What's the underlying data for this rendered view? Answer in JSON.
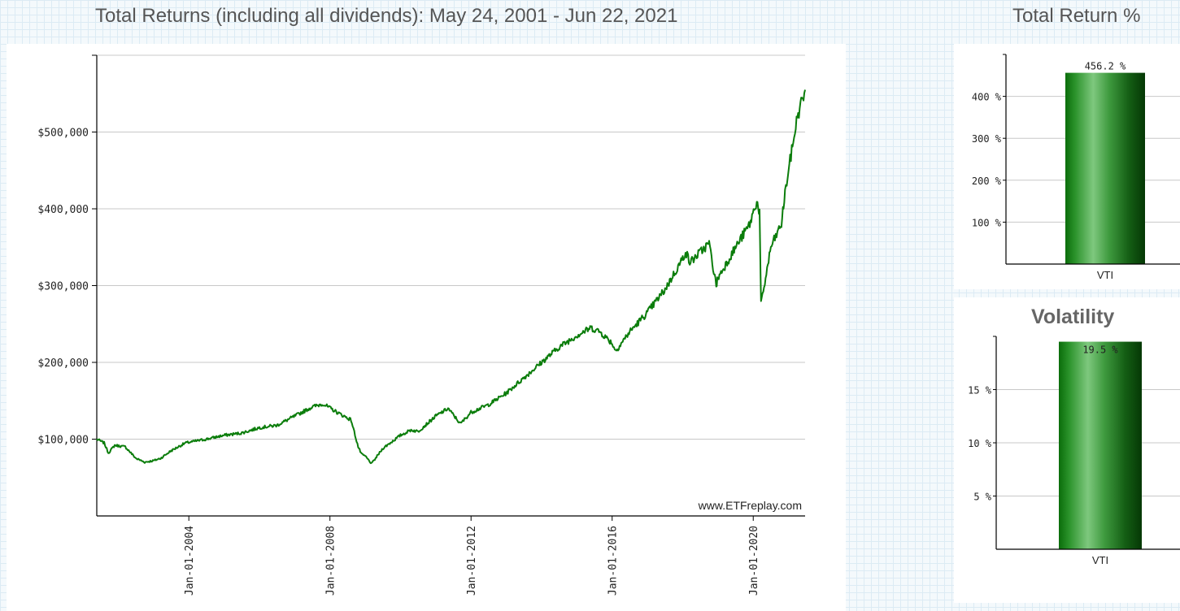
{
  "main_title": "Total Returns (including all dividends): May 24, 2001 - Jun 22, 2021",
  "total_return_title": "Total Return %",
  "volatility_title": "Volatility",
  "watermark": "www.ETFreplay.com",
  "colors": {
    "line": "#0b7d0b",
    "bar_dark": "#0a5a0a",
    "bar_light": "#7ec87e",
    "grid": "#c8c8c8"
  },
  "chart_data": [
    {
      "type": "line",
      "title": "Total Returns (including all dividends): May 24, 2001 - Jun 22, 2021",
      "xlabel": "",
      "ylabel": "",
      "x_range": [
        2001.39,
        2021.47
      ],
      "ylim": [
        0,
        600000
      ],
      "y_ticks": [
        100000,
        200000,
        300000,
        400000,
        500000
      ],
      "y_tick_labels": [
        "$100,000",
        "$200,000",
        "$300,000",
        "$400,000",
        "$500,000"
      ],
      "x_ticks": [
        2004.0,
        2008.0,
        2012.0,
        2016.0,
        2020.0
      ],
      "x_tick_labels": [
        "Jan-01-2004",
        "Jan-01-2008",
        "Jan-01-2012",
        "Jan-01-2016",
        "Jan-01-2020"
      ],
      "series": [
        {
          "name": "VTI",
          "x": [
            2001.39,
            2001.6,
            2001.72,
            2001.9,
            2002.2,
            2002.5,
            2002.75,
            2003.0,
            2003.2,
            2003.5,
            2003.9,
            2004.5,
            2005.0,
            2005.5,
            2006.0,
            2006.5,
            2007.0,
            2007.5,
            2007.8,
            2008.2,
            2008.6,
            2008.8,
            2008.9,
            2009.0,
            2009.18,
            2009.5,
            2010.0,
            2010.3,
            2010.5,
            2011.0,
            2011.35,
            2011.7,
            2012.0,
            2012.5,
            2013.0,
            2013.5,
            2014.0,
            2014.5,
            2015.0,
            2015.4,
            2015.65,
            2016.0,
            2016.1,
            2016.5,
            2017.0,
            2017.5,
            2018.0,
            2018.08,
            2018.2,
            2018.75,
            2018.95,
            2019.0,
            2019.5,
            2019.9,
            2020.1,
            2020.18,
            2020.22,
            2020.5,
            2020.8,
            2020.9,
            2021.0,
            2021.25,
            2021.47
          ],
          "values": [
            100000,
            95000,
            82000,
            92000,
            90000,
            75000,
            70000,
            72000,
            75000,
            85000,
            95000,
            100000,
            105000,
            108000,
            115000,
            118000,
            130000,
            142000,
            146000,
            135000,
            125000,
            90000,
            80000,
            78000,
            68000,
            88000,
            105000,
            112000,
            110000,
            130000,
            140000,
            120000,
            135000,
            145000,
            160000,
            180000,
            200000,
            220000,
            235000,
            245000,
            240000,
            225000,
            215000,
            240000,
            265000,
            295000,
            335000,
            345000,
            330000,
            355000,
            300000,
            310000,
            350000,
            380000,
            410000,
            395000,
            275000,
            350000,
            380000,
            420000,
            450000,
            520000,
            555000
          ]
        }
      ]
    },
    {
      "type": "bar",
      "title": "Total Return %",
      "categories": [
        "VTI"
      ],
      "values": [
        456.2
      ],
      "value_labels": [
        "456.2 %"
      ],
      "ylim": [
        0,
        500
      ],
      "y_ticks": [
        100,
        200,
        300,
        400
      ],
      "y_tick_labels": [
        "100 %",
        "200 %",
        "300 %",
        "400 %"
      ]
    },
    {
      "type": "bar",
      "title": "Volatility",
      "categories": [
        "VTI"
      ],
      "values": [
        19.5
      ],
      "value_labels": [
        "19.5 %"
      ],
      "ylim": [
        0,
        20
      ],
      "y_ticks": [
        5,
        10,
        15
      ],
      "y_tick_labels": [
        "5 %",
        "10 %",
        "15 %"
      ]
    }
  ]
}
